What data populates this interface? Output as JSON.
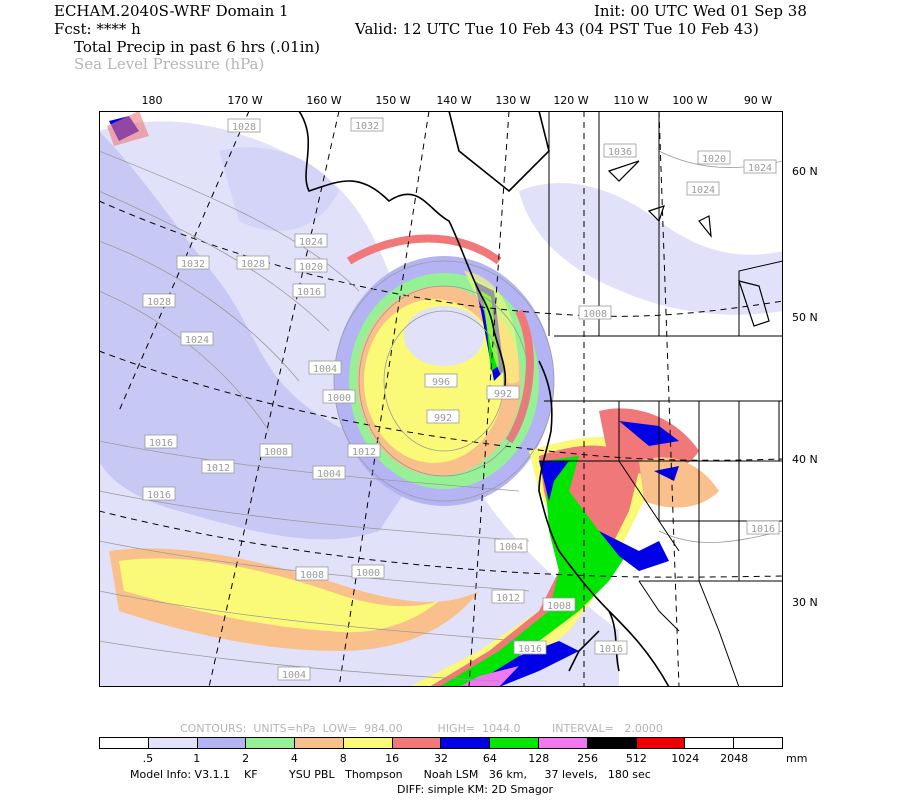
{
  "header": {
    "model": "ECHAM.2040S-WRF Domain 1",
    "fcst": "Fcst: **** h",
    "field1": "Total Precip in past 6 hrs (.01in)",
    "field2": "Sea Level Pressure (hPa)",
    "init": "Init: 00 UTC Wed 01 Sep 38",
    "valid": "Valid: 12 UTC Tue 10 Feb 43 (04 PST Tue 10 Feb 43)"
  },
  "axes": {
    "lon_labels": [
      "180",
      "170 W",
      "160 W",
      "150 W",
      "140 W",
      "130 W",
      "120 W",
      "110 W",
      "100 W",
      "90 W"
    ],
    "lat_labels": [
      "60 N",
      "50 N",
      "40 N",
      "30 N"
    ]
  },
  "isobar_labels": [
    "1028",
    "1032",
    "1036",
    "1024",
    "1032",
    "1028",
    "1024",
    "1020",
    "1016",
    "1028",
    "1024",
    "1004",
    "1000",
    "996",
    "992",
    "992",
    "1016",
    "1008",
    "1008",
    "1004",
    "1012",
    "1012",
    "1016",
    "1016",
    "1008",
    "1000",
    "1004",
    "1012",
    "1008",
    "1016",
    "1016",
    "1004",
    "1020",
    "1024"
  ],
  "contours": "CONTOURS:  UNITS=hPa  LOW=  984.00          HIGH=  1044.0         INTERVAL=   2.0000",
  "legend": {
    "ticks": [
      ".5",
      "1",
      "2",
      "4",
      "8",
      "16",
      "32",
      "64",
      "128",
      "256",
      "512",
      "1024",
      "2048"
    ],
    "units": "mm",
    "colors": [
      "#ffffff",
      "#e1e1fa",
      "#b4b4f5",
      "#96f096",
      "#fac08c",
      "#fafa78",
      "#f07878",
      "#0000e6",
      "#00e600",
      "#f078f0",
      "#000000",
      "#f00000",
      "#ffffff",
      "#ffffff"
    ]
  },
  "footer": {
    "line1": "Model Info: V3.1.1    KF         YSU PBL   Thompson      Noah LSM   36 km,     37 levels,   180 sec",
    "line2": "DIFF: simple KM: 2D Smagor"
  },
  "chart_data": {
    "type": "heatmap",
    "title": "Total Precip in past 6 hrs (.01in)",
    "overlay": "Sea Level Pressure (hPa)",
    "x_ticks": [
      "180",
      "170 W",
      "160 W",
      "150 W",
      "140 W",
      "130 W",
      "120 W",
      "110 W",
      "100 W",
      "90 W"
    ],
    "y_ticks": [
      "60 N",
      "50 N",
      "40 N",
      "30 N"
    ],
    "color_levels": [
      0.5,
      1,
      2,
      4,
      8,
      16,
      32,
      64,
      128,
      256,
      512,
      1024,
      2048
    ],
    "units": "mm",
    "contour_low": 984.0,
    "contour_high": 1044.0,
    "contour_interval": 2.0
  }
}
